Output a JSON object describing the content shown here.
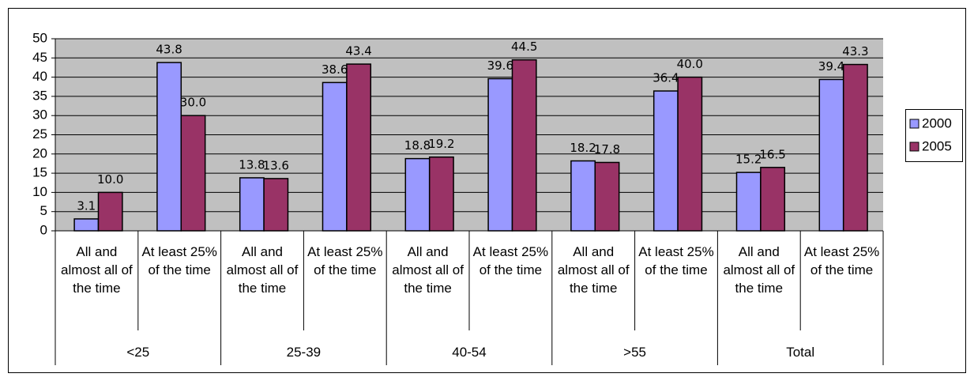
{
  "chart_data": {
    "type": "bar",
    "categories": [
      "All and almost all of the time",
      "At least 25% of the time",
      "All and almost all of the time",
      "At least 25% of the time",
      "All and almost all of the time",
      "At least 25% of the time",
      "All and almost all of the time",
      "At least 25% of the time",
      "All and almost all of the time",
      "At least 25% of the time"
    ],
    "groups": [
      "<25",
      "25-39",
      "40-54",
      ">55",
      "Total"
    ],
    "series": [
      {
        "name": "2000",
        "color": "#9999ff",
        "values": [
          3.1,
          43.8,
          13.8,
          38.6,
          18.8,
          39.6,
          18.2,
          36.4,
          15.2,
          39.4
        ],
        "value_labels": [
          "3.1",
          "43.8",
          "13.8",
          "38.6",
          "18.8",
          "39.6",
          "18.2",
          "36.4",
          "15.2",
          "39.4"
        ]
      },
      {
        "name": "2005",
        "color": "#993366",
        "values": [
          10,
          30,
          13.6,
          43.4,
          19.2,
          44.5,
          17.8,
          40,
          16.5,
          43.3
        ],
        "value_labels": [
          "10.0",
          "30.0",
          "13.6",
          "43.4",
          "19.2",
          "44.5",
          "17.8",
          "40.0",
          "16.5",
          "43.3"
        ]
      }
    ],
    "ylim": [
      0,
      50
    ],
    "yticks": [
      0,
      5,
      10,
      15,
      20,
      25,
      30,
      35,
      40,
      45,
      50
    ],
    "grid": true,
    "plot_background": "#c0c0c0",
    "legend": "right"
  }
}
